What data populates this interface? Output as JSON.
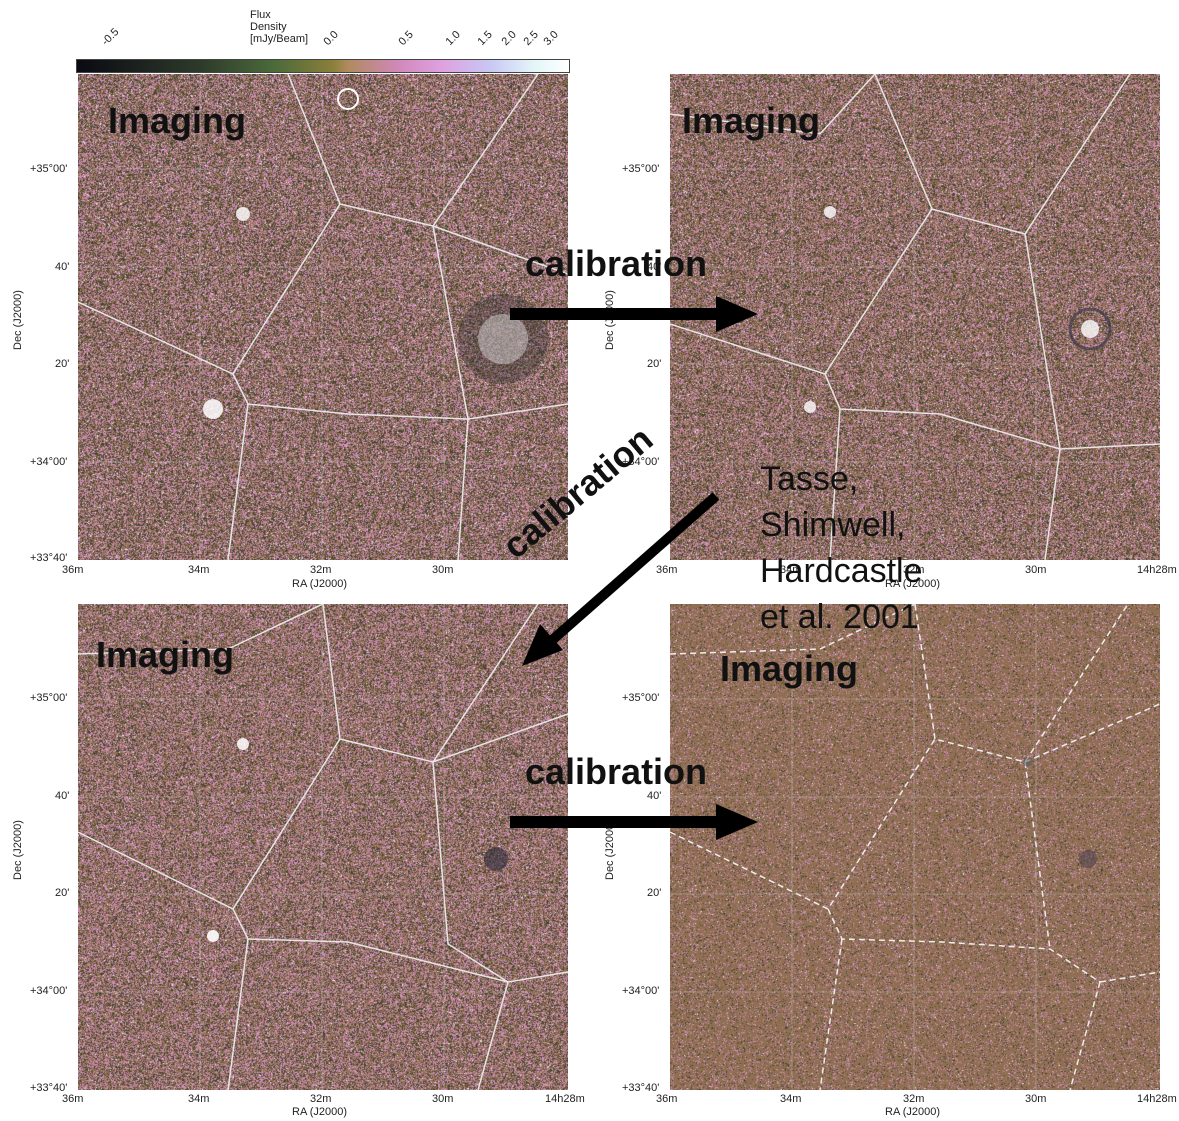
{
  "colorbar": {
    "title": "Flux Density [mJy/Beam]",
    "ticks": [
      "-0.5",
      "0.0",
      "0.5",
      "1.0",
      "1.5",
      "2.0",
      "2.5",
      "3.0"
    ]
  },
  "panels": [
    {
      "id": "top-left",
      "label": "Imaging",
      "y_axis_label": "Dec (J2000)",
      "x_axis_label": "RA (J2000)",
      "y_ticks": [
        "+35°00'",
        "40'",
        "20'",
        "+34°00'",
        "+33°40'"
      ],
      "x_ticks": [
        "36m",
        "34m",
        "32m",
        "30m"
      ]
    },
    {
      "id": "top-right",
      "label": "Imaging",
      "y_axis_label": "Dec (J2000)",
      "x_axis_label": "RA (J2000)",
      "y_ticks": [
        "+35°00'",
        "40'",
        "20'",
        "+34°00'"
      ],
      "x_ticks": [
        "36m",
        "34m",
        "32m",
        "30m",
        "14h28m"
      ]
    },
    {
      "id": "bottom-left",
      "label": "Imaging",
      "y_axis_label": "Dec (J2000)",
      "x_axis_label": "RA (J2000)",
      "y_ticks": [
        "+35°00'",
        "40'",
        "20'",
        "+34°00'",
        "+33°40'"
      ],
      "x_ticks": [
        "36m",
        "34m",
        "32m",
        "30m",
        "14h28m"
      ]
    },
    {
      "id": "bottom-right",
      "label": "Imaging",
      "y_axis_label": "Dec (J2000)",
      "x_axis_label": "RA (J2000)",
      "y_ticks": [
        "+35°00'",
        "40'",
        "20'",
        "+34°00'",
        "+33°40'"
      ],
      "x_ticks": [
        "36m",
        "34m",
        "32m",
        "30m",
        "14h28m"
      ]
    }
  ],
  "arrows": {
    "top_label": "calibration",
    "diagonal_label": "calibration",
    "bottom_label": "calibration"
  },
  "credit": {
    "line1": "Tasse, Shimwell,",
    "line2": "Hardcastle et al. 2001"
  },
  "colors": {
    "noise_base": "#8a6a4e",
    "noise_pink": "#c98ab8",
    "noise_dark": "#3a3a26",
    "facet_line": "#e6e6e6",
    "arrow": "#000000"
  }
}
